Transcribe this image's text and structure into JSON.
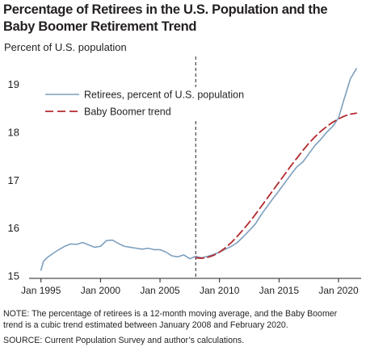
{
  "title_lines": [
    "Percentage of Retirees in the U.S. Population and the",
    "Baby Boomer Retirement Trend"
  ],
  "note_lines": [
    "NOTE: The percentage of retirees is a 12-month moving average, and the Baby Boomer",
    "trend is a cubic trend estimated between January 2008 and February 2020."
  ],
  "source": "SOURCE: Current Population Survey and author’s calculations.",
  "chart_data": {
    "type": "line",
    "title": "Percentage of Retirees in the U.S. Population and the Baby Boomer Retirement Trend",
    "ylabel": "Percent of U.S. population",
    "xlabel": "",
    "xlim": [
      1994.0,
      2021.9
    ],
    "ylim": [
      14.95,
      19.55
    ],
    "yticks": [
      15,
      16,
      17,
      18,
      19
    ],
    "xticks": [
      {
        "value": 1995,
        "label": "Jan 1995"
      },
      {
        "value": 2000,
        "label": "Jan 2000"
      },
      {
        "value": 2005,
        "label": "Jan 2005"
      },
      {
        "value": 2010,
        "label": "Jan 2010"
      },
      {
        "value": 2015,
        "label": "Jan 2015"
      },
      {
        "value": 2020,
        "label": "Jan 2020"
      }
    ],
    "grid": false,
    "legend_position": "top-left",
    "reference_line": {
      "x": 2008.0,
      "style": "dashed"
    },
    "series": [
      {
        "name": "Retirees, percent of U.S. population",
        "color": "#7d9fbf",
        "style": "solid",
        "x": [
          1995.0,
          1995.2,
          1995.5,
          1996.0,
          1996.5,
          1997.0,
          1997.5,
          1998.0,
          1998.5,
          1999.0,
          1999.5,
          2000.0,
          2000.5,
          2001.0,
          2001.5,
          2002.0,
          2002.5,
          2003.0,
          2003.5,
          2004.0,
          2004.5,
          2005.0,
          2005.5,
          2006.0,
          2006.5,
          2007.0,
          2007.5,
          2008.0,
          2008.5,
          2009.0,
          2009.5,
          2010.0,
          2010.5,
          2011.0,
          2011.5,
          2012.0,
          2012.5,
          2013.0,
          2013.5,
          2014.0,
          2014.5,
          2015.0,
          2015.5,
          2016.0,
          2016.5,
          2017.0,
          2017.5,
          2018.0,
          2018.5,
          2019.0,
          2019.5,
          2020.0,
          2020.5,
          2021.0,
          2021.5
        ],
        "values": [
          15.12,
          15.3,
          15.38,
          15.47,
          15.55,
          15.62,
          15.67,
          15.66,
          15.7,
          15.65,
          15.6,
          15.62,
          15.74,
          15.75,
          15.68,
          15.62,
          15.6,
          15.58,
          15.56,
          15.58,
          15.55,
          15.55,
          15.5,
          15.42,
          15.4,
          15.44,
          15.36,
          15.41,
          15.38,
          15.41,
          15.45,
          15.5,
          15.56,
          15.62,
          15.7,
          15.82,
          15.95,
          16.08,
          16.28,
          16.45,
          16.62,
          16.78,
          16.95,
          17.12,
          17.28,
          17.38,
          17.55,
          17.72,
          17.85,
          18.0,
          18.12,
          18.3,
          18.72,
          19.12,
          19.33
        ]
      },
      {
        "name": "Baby Boomer trend",
        "color": "#b22a2e",
        "style": "dashed",
        "x": [
          2008.0,
          2008.5,
          2009.0,
          2009.5,
          2010.0,
          2010.5,
          2011.0,
          2011.5,
          2012.0,
          2012.5,
          2013.0,
          2013.5,
          2014.0,
          2014.5,
          2015.0,
          2015.5,
          2016.0,
          2016.5,
          2017.0,
          2017.5,
          2018.0,
          2018.5,
          2019.0,
          2019.5,
          2020.0,
          2020.5,
          2021.0,
          2021.5
        ],
        "values": [
          15.38,
          15.37,
          15.39,
          15.43,
          15.5,
          15.59,
          15.7,
          15.83,
          15.97,
          16.12,
          16.28,
          16.45,
          16.62,
          16.79,
          16.96,
          17.13,
          17.3,
          17.46,
          17.62,
          17.77,
          17.9,
          18.02,
          18.12,
          18.21,
          18.28,
          18.34,
          18.38,
          18.4
        ]
      }
    ]
  }
}
